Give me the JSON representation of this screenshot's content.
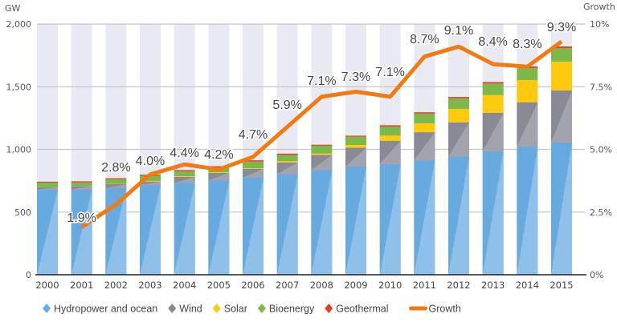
{
  "chart_data": {
    "type": "bar",
    "stacked": true,
    "title": "",
    "ylabel": "GW",
    "y2label": "Growth",
    "ylim": [
      0,
      2000
    ],
    "y2lim": [
      0,
      10
    ],
    "yticks": [
      "0",
      "500",
      "1,000",
      "1,500",
      "2,000"
    ],
    "y2ticks": [
      "0%",
      "2.5%",
      "5.0%",
      "7.5%",
      "10%"
    ],
    "grid": true,
    "legend_position": "bottom",
    "categories": [
      "2000",
      "2001",
      "2002",
      "2003",
      "2004",
      "2005",
      "2006",
      "2007",
      "2008",
      "2009",
      "2010",
      "2011",
      "2012",
      "2013",
      "2014",
      "2015"
    ],
    "series": [
      {
        "name": "Hydropower and ocean",
        "color": "#67aadf",
        "values": [
          680,
          680,
          690,
          716,
          733,
          752,
          775,
          803,
          835,
          865,
          884,
          912,
          944,
          984,
          1022,
          1056
        ]
      },
      {
        "name": "Wind",
        "color": "#8a8a97",
        "values": [
          17,
          27,
          32,
          27,
          47,
          60,
          70,
          93,
          121,
          149,
          185,
          225,
          272,
          307,
          354,
          415
        ]
      },
      {
        "name": "Solar",
        "color": "#ffc90e",
        "values": [
          1,
          1,
          2,
          5,
          5,
          5,
          5,
          10,
          11,
          21,
          41,
          71,
          107,
          142,
          177,
          229
        ]
      },
      {
        "name": "Bioenergy",
        "color": "#7cb84a",
        "values": [
          36,
          28,
          38,
          42,
          41,
          40,
          53,
          50,
          62,
          66,
          72,
          78,
          85,
          92,
          96,
          108
        ]
      },
      {
        "name": "Geothermal",
        "color": "#e0402a",
        "values": [
          8,
          9,
          8,
          8,
          9,
          9,
          10,
          10,
          8,
          8,
          10,
          10,
          10,
          12,
          12,
          13
        ]
      }
    ],
    "line": {
      "name": "Growth",
      "color": "#f07b12",
      "axis": "right",
      "categories": [
        "2001",
        "2002",
        "2003",
        "2004",
        "2005",
        "2006",
        "2007",
        "2008",
        "2009",
        "2010",
        "2011",
        "2012",
        "2013",
        "2014",
        "2015"
      ],
      "values": [
        1.9,
        2.8,
        4.0,
        4.4,
        4.2,
        4.7,
        5.9,
        7.1,
        7.3,
        7.1,
        8.7,
        9.1,
        8.4,
        8.3,
        9.3
      ],
      "labels": [
        "1.9%",
        "2.8%",
        "4.0%",
        "4.4%",
        "4.2%",
        "4.7%",
        "5.9%",
        "7.1%",
        "7.3%",
        "7.1%",
        "8.7%",
        "9.1%",
        "8.4%",
        "8.3%",
        "9.3%"
      ]
    },
    "bar_background_color": "#e9e9f1"
  }
}
